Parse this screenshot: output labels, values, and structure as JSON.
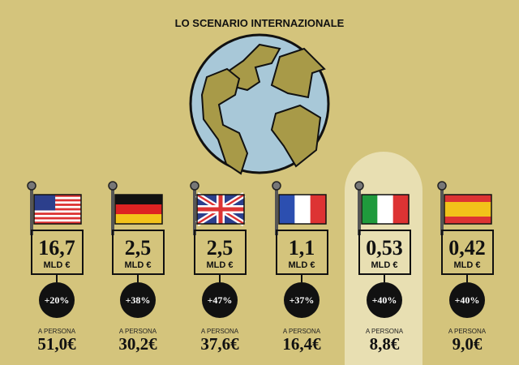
{
  "title": "LO SCENARIO INTERNAZIONALE",
  "countries": [
    {
      "value": "16,7",
      "unit": "MLD €",
      "growth": "+20%",
      "per_person_label": "A PERSONA",
      "per_person": "51,0€"
    },
    {
      "value": "2,5",
      "unit": "MLD €",
      "growth": "+38%",
      "per_person_label": "A PERSONA",
      "per_person": "30,2€"
    },
    {
      "value": "2,5",
      "unit": "MLD €",
      "growth": "+47%",
      "per_person_label": "A PERSONA",
      "per_person": "37,6€"
    },
    {
      "value": "1,1",
      "unit": "MLD €",
      "growth": "+37%",
      "per_person_label": "A PERSONA",
      "per_person": "16,4€"
    },
    {
      "value": "0,53",
      "unit": "MLD €",
      "growth": "+40%",
      "per_person_label": "A PERSONA",
      "per_person": "8,8€"
    },
    {
      "value": "0,42",
      "unit": "MLD €",
      "growth": "+40%",
      "per_person_label": "A PERSONA",
      "per_person": "9,0€"
    }
  ]
}
